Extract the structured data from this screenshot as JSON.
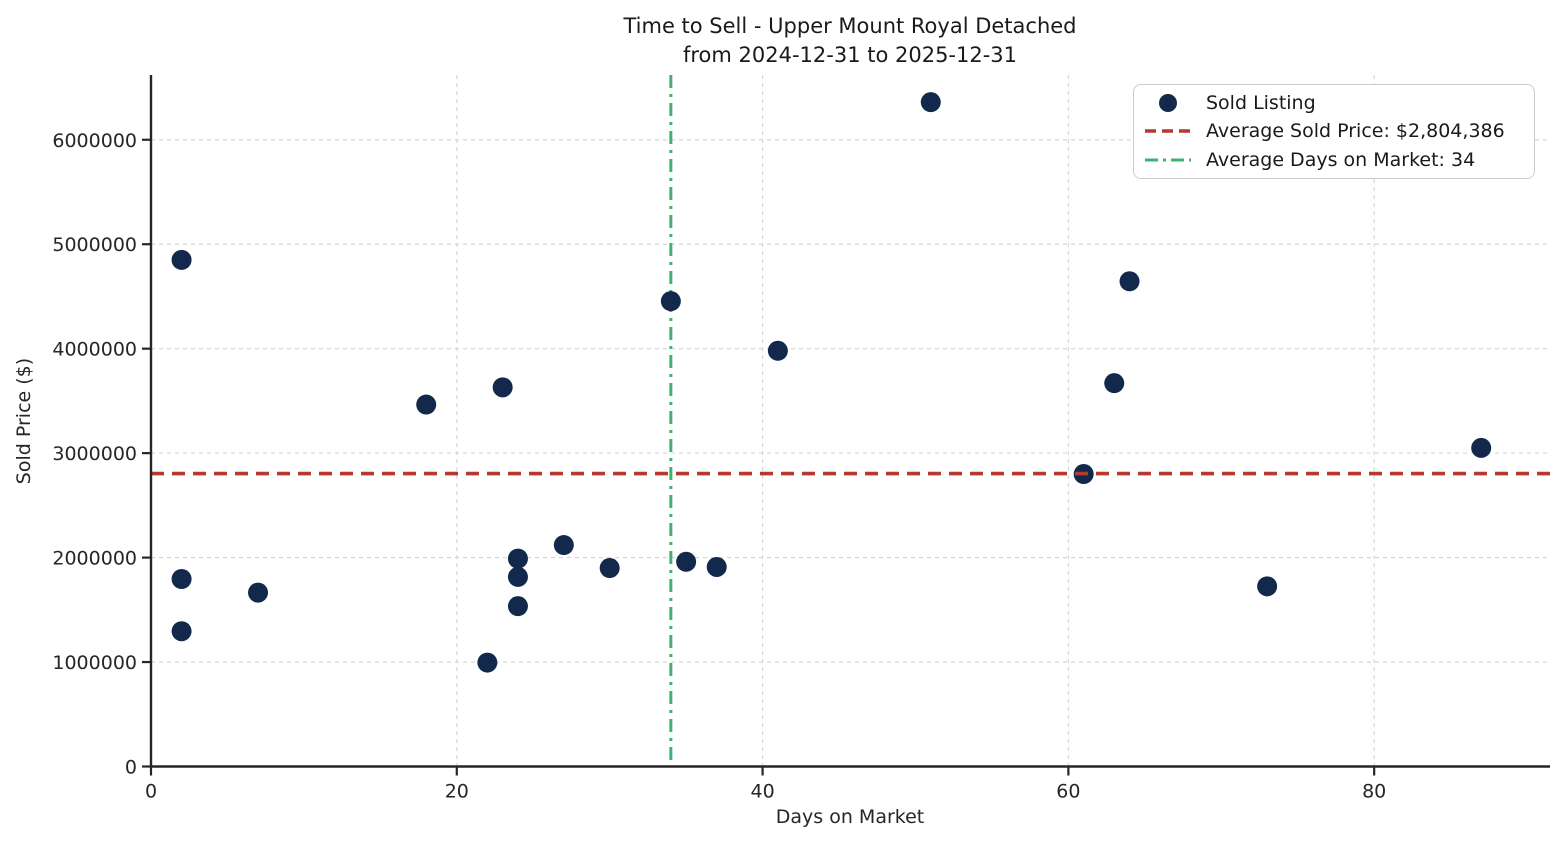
{
  "figure": {
    "title_line1": "Time to Sell - Upper Mount Royal Detached",
    "title_line2": "from 2024-12-31 to 2025-12-31",
    "xlabel": "Days on Market",
    "ylabel": "Sold Price ($)"
  },
  "legend": {
    "items": [
      {
        "label": "Sold Listing",
        "marker": "dot"
      },
      {
        "label": "Average Sold Price: $2,804,386",
        "marker": "dashed"
      },
      {
        "label": "Average Days on Market: 34",
        "marker": "dashdot"
      }
    ]
  },
  "chart_data": {
    "type": "scatter",
    "title": "Time to Sell - Upper Mount Royal Detached from 2024-12-31 to 2025-12-31",
    "xlabel": "Days on Market",
    "ylabel": "Sold Price ($)",
    "xlim": [
      0,
      91.5
    ],
    "ylim": [
      0,
      6620000
    ],
    "x_ticks": [
      0,
      20,
      40,
      60,
      80
    ],
    "y_ticks": [
      0,
      1000000,
      2000000,
      3000000,
      4000000,
      5000000,
      6000000
    ],
    "grid": {
      "show": true,
      "style": "dashed",
      "color": "#d4d4d4"
    },
    "legend_position": "upper right",
    "series": [
      {
        "name": "Sold Listing",
        "points": [
          [
            2,
            4850000
          ],
          [
            2,
            1795000
          ],
          [
            2,
            1295000
          ],
          [
            7,
            1665000
          ],
          [
            18,
            3465000
          ],
          [
            22,
            995000
          ],
          [
            23,
            3630000
          ],
          [
            24,
            1990000
          ],
          [
            24,
            1815000
          ],
          [
            24,
            1535000
          ],
          [
            27,
            2120000
          ],
          [
            30,
            1900000
          ],
          [
            34,
            4455000
          ],
          [
            35,
            1960000
          ],
          [
            37,
            1910000
          ],
          [
            41,
            3980000
          ],
          [
            51,
            6360000
          ],
          [
            61,
            2800000
          ],
          [
            63,
            3670000
          ],
          [
            64,
            4645000
          ],
          [
            73,
            1725000
          ],
          [
            87,
            3050000
          ]
        ]
      }
    ],
    "reference_lines": {
      "average_sold_price": 2804386,
      "average_days_on_market": 34
    },
    "colors": {
      "point": "#13294B",
      "avg_price_line": "#B33A2C",
      "avg_days_line": "#3CB371",
      "spine": "#262626",
      "gridline": "#d4d4d4"
    }
  }
}
